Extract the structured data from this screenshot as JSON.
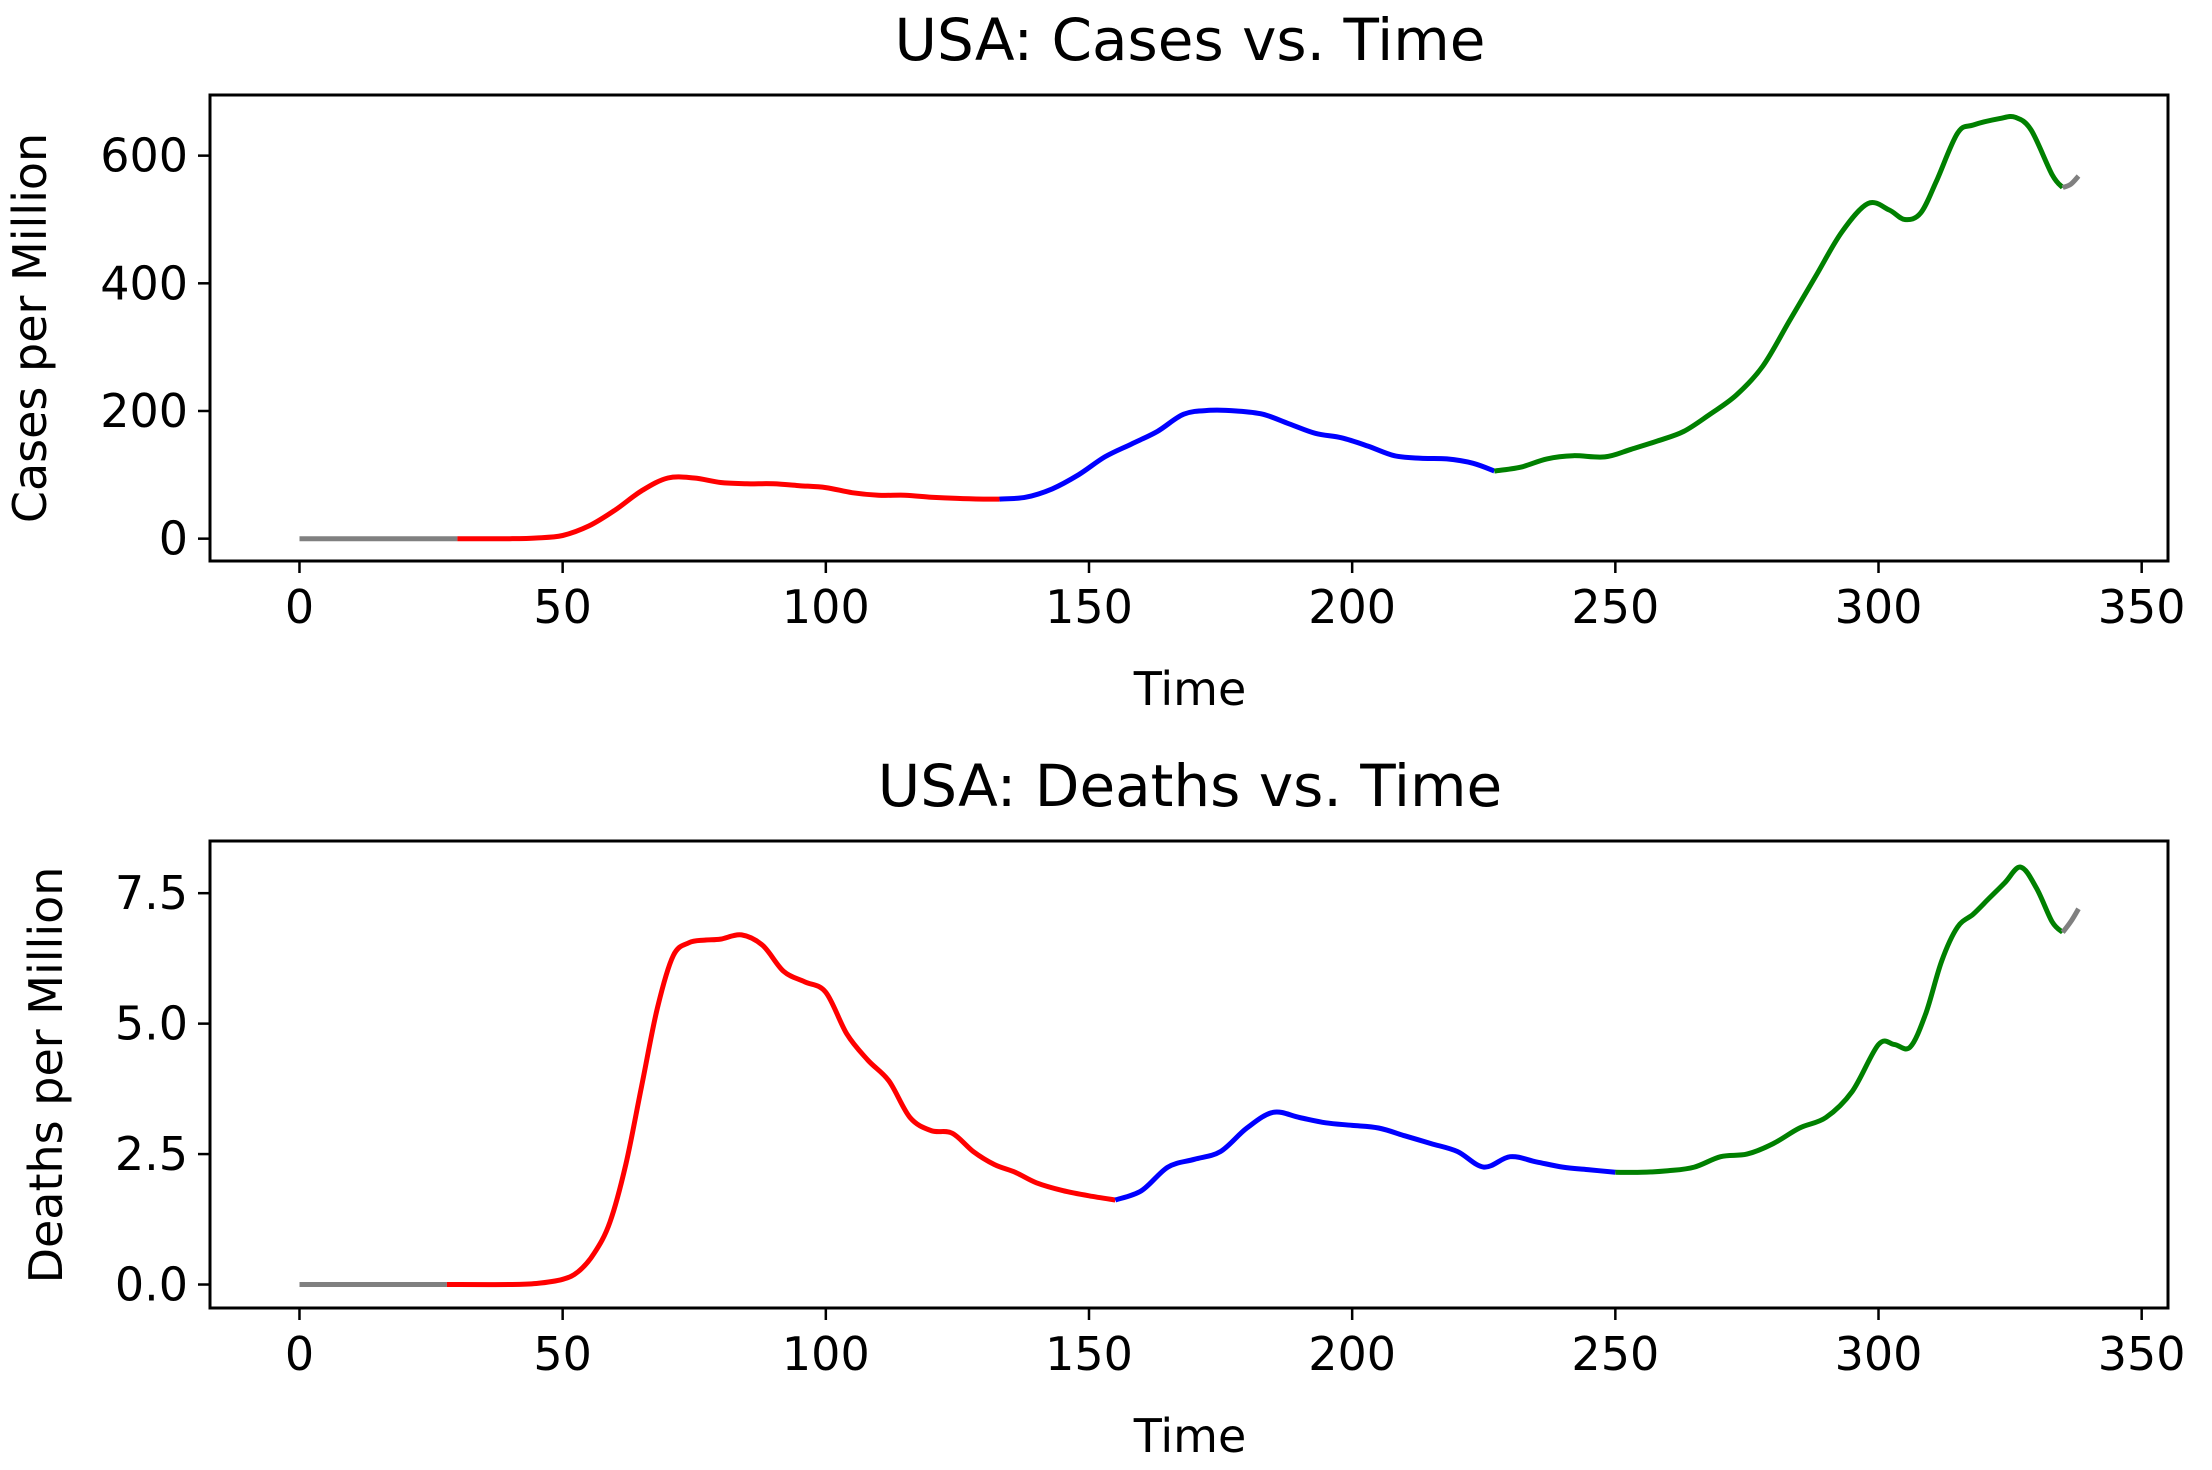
{
  "chart_data": [
    {
      "type": "line",
      "title": "USA: Cases vs. Time",
      "xlabel": "Time",
      "ylabel": "Cases per Million",
      "xlim": [
        -17,
        355
      ],
      "ylim": [
        -35,
        695
      ],
      "xticks": [
        0,
        50,
        100,
        150,
        200,
        250,
        300,
        350
      ],
      "yticks": [
        0,
        200,
        400,
        600
      ],
      "grid": false,
      "legend": "none",
      "series": [
        {
          "color": "#808080",
          "x": [
            0,
            30
          ],
          "y": [
            0,
            0
          ]
        },
        {
          "color": "#ff0000",
          "x": [
            30,
            40,
            45,
            50,
            55,
            60,
            65,
            70,
            75,
            80,
            85,
            90,
            95,
            100,
            105,
            110,
            115,
            120,
            125,
            130,
            133
          ],
          "y": [
            0,
            0,
            1,
            5,
            20,
            45,
            75,
            95,
            95,
            88,
            86,
            86,
            83,
            80,
            72,
            68,
            68,
            65,
            63,
            62,
            62
          ]
        },
        {
          "color": "#0000ff",
          "x": [
            133,
            138,
            143,
            148,
            153,
            158,
            163,
            168,
            173,
            178,
            183,
            188,
            193,
            198,
            203,
            208,
            213,
            218,
            223,
            227
          ],
          "y": [
            62,
            65,
            78,
            100,
            128,
            148,
            168,
            195,
            201,
            200,
            195,
            180,
            165,
            158,
            145,
            130,
            126,
            125,
            118,
            106
          ]
        },
        {
          "color": "#008000",
          "x": [
            227,
            232,
            237,
            242,
            248,
            253,
            258,
            263,
            268,
            273,
            278,
            283,
            288,
            293,
            298,
            302,
            305,
            308,
            311,
            315,
            318,
            323,
            326,
            329,
            333,
            335
          ],
          "y": [
            106,
            112,
            125,
            130,
            128,
            140,
            153,
            168,
            195,
            225,
            270,
            340,
            410,
            480,
            525,
            515,
            500,
            510,
            560,
            635,
            648,
            658,
            660,
            640,
            570,
            550
          ]
        },
        {
          "color": "#808080",
          "x": [
            335,
            336.5,
            338
          ],
          "y": [
            550,
            555,
            568
          ]
        }
      ]
    },
    {
      "type": "line",
      "title": "USA: Deaths vs. Time",
      "xlabel": "Time",
      "ylabel": "Deaths per Million",
      "xlim": [
        -17,
        355
      ],
      "ylim": [
        -0.45,
        8.5
      ],
      "xticks": [
        0,
        50,
        100,
        150,
        200,
        250,
        300,
        350
      ],
      "yticks": [
        0.0,
        2.5,
        5.0,
        7.5
      ],
      "ytick_labels": [
        "0.0",
        "2.5",
        "5.0",
        "7.5"
      ],
      "grid": false,
      "legend": "none",
      "series": [
        {
          "color": "#808080",
          "x": [
            0,
            28
          ],
          "y": [
            0,
            0
          ]
        },
        {
          "color": "#ff0000",
          "x": [
            28,
            40,
            45,
            50,
            53,
            56,
            59,
            62,
            65,
            68,
            71,
            74,
            77,
            80,
            84,
            88,
            92,
            96,
            100,
            104,
            108,
            112,
            116,
            120,
            124,
            128,
            132,
            136,
            140,
            145,
            150,
            155
          ],
          "y": [
            0,
            0,
            0.02,
            0.1,
            0.25,
            0.6,
            1.2,
            2.3,
            3.8,
            5.3,
            6.3,
            6.55,
            6.6,
            6.62,
            6.7,
            6.5,
            6.0,
            5.8,
            5.6,
            4.8,
            4.3,
            3.9,
            3.2,
            2.95,
            2.9,
            2.55,
            2.3,
            2.15,
            1.95,
            1.8,
            1.7,
            1.62
          ]
        },
        {
          "color": "#0000ff",
          "x": [
            155,
            160,
            165,
            170,
            175,
            180,
            185,
            190,
            195,
            200,
            205,
            210,
            215,
            220,
            225,
            230,
            235,
            240,
            245,
            250
          ],
          "y": [
            1.62,
            1.8,
            2.25,
            2.4,
            2.55,
            3.0,
            3.3,
            3.2,
            3.1,
            3.05,
            3.0,
            2.85,
            2.7,
            2.55,
            2.25,
            2.45,
            2.35,
            2.25,
            2.2,
            2.15
          ]
        },
        {
          "color": "#008000",
          "x": [
            250,
            255,
            260,
            265,
            270,
            275,
            280,
            285,
            290,
            295,
            300,
            303,
            306,
            309,
            312,
            315,
            318,
            321,
            324,
            327,
            330,
            333,
            335
          ],
          "y": [
            2.15,
            2.15,
            2.18,
            2.25,
            2.45,
            2.5,
            2.7,
            3.0,
            3.2,
            3.7,
            4.6,
            4.6,
            4.55,
            5.2,
            6.2,
            6.85,
            7.1,
            7.4,
            7.7,
            8.0,
            7.6,
            6.95,
            6.75
          ]
        },
        {
          "color": "#808080",
          "x": [
            335,
            336.5,
            338
          ],
          "y": [
            6.75,
            6.95,
            7.2
          ]
        }
      ]
    }
  ]
}
